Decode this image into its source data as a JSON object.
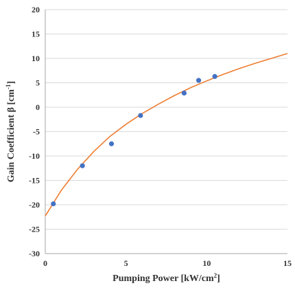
{
  "chart_data": {
    "type": "scatter",
    "title": "",
    "xlabel": {
      "text": "Pumping Power [kW/cm",
      "sup": "2",
      "close": "]"
    },
    "ylabel": {
      "text": "Gain Coefficient β [cm",
      "sup": "-1",
      "close": "]"
    },
    "xlim": [
      0,
      15
    ],
    "ylim": [
      -30,
      20
    ],
    "x_ticks": [
      0,
      5,
      10,
      15
    ],
    "y_ticks": [
      -30,
      -25,
      -20,
      -15,
      -10,
      -5,
      0,
      5,
      10,
      15,
      20
    ],
    "grid": true,
    "legend": "none",
    "series": [
      {
        "kind": "points",
        "color": "#4472c4",
        "x": [
          0.5,
          2.3,
          4.1,
          5.9,
          8.6,
          9.5,
          10.5
        ],
        "y": [
          -19.8,
          -12.0,
          -7.5,
          -1.7,
          2.9,
          5.5,
          6.3
        ]
      },
      {
        "kind": "fit-curve",
        "color": "#ed7d31",
        "x": [
          0,
          1,
          2,
          3,
          4,
          5,
          6,
          7,
          8,
          9,
          10,
          11,
          12,
          13,
          14,
          15
        ],
        "y": [
          -22.3,
          -17.0,
          -12.7,
          -9.1,
          -6.0,
          -3.5,
          -1.3,
          0.6,
          2.4,
          4.0,
          5.4,
          6.7,
          7.9,
          9.0,
          10.0,
          11.0
        ]
      }
    ]
  }
}
